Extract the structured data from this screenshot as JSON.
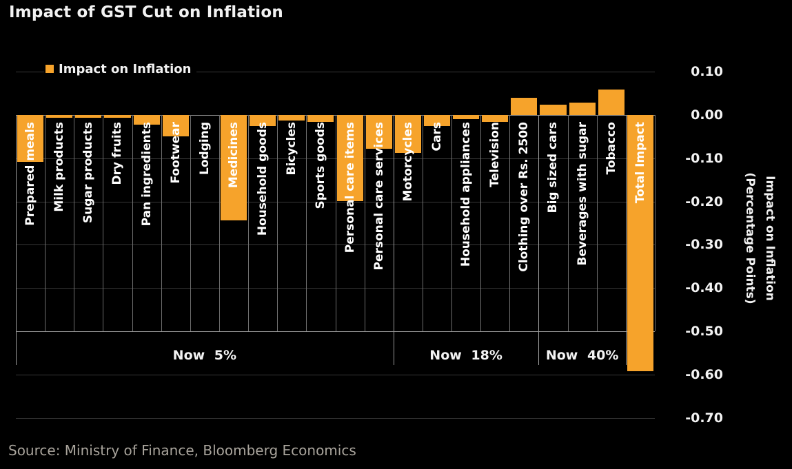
{
  "title": "Impact of GST Cut on Inflation",
  "legend": {
    "label": "Impact on Inflation"
  },
  "source": "Source: Ministry of Finance, Bloomberg Economics",
  "y_axis": {
    "title_line1": "Impact on Inflation",
    "title_line2": "(Percentage Points)",
    "ticks": [
      0.1,
      0.0,
      -0.1,
      -0.2,
      -0.3,
      -0.4,
      -0.5,
      -0.6,
      -0.7
    ]
  },
  "colors": {
    "background": "#000000",
    "bar": "#F6A32B",
    "text": "#F2F2F2",
    "gridline": "#373737",
    "zero_line": "#8a8a8a",
    "column_separator": "#6f6f6f",
    "band_edge": "#9a9a9a",
    "source_text": "#A9A49C"
  },
  "chart_data": {
    "type": "bar",
    "title": "Impact of GST Cut on Inflation",
    "series_name": "Impact on Inflation",
    "categories": [
      "Prepared meals",
      "Milk products",
      "Sugar products",
      "Dry fruits",
      "Pan ingredients",
      "Footwear",
      "Lodging",
      "Medicines",
      "Household goods",
      "Bicycles",
      "Sports goods",
      "Personal care items",
      "Personal care services",
      "Motorcycles",
      "Cars",
      "Household appliances",
      "Television",
      "Clothing over Rs. 2500",
      "Big sized cars",
      "Beverages with sugar",
      "Tobacco",
      "Total Impact"
    ],
    "values": [
      -0.108,
      -0.006,
      -0.006,
      -0.006,
      -0.022,
      -0.05,
      0.0,
      -0.244,
      -0.026,
      -0.012,
      -0.016,
      -0.199,
      -0.078,
      -0.087,
      -0.025,
      -0.01,
      -0.016,
      0.04,
      0.024,
      0.029,
      0.059,
      -0.592
    ],
    "groups": [
      {
        "label": "Now 5%",
        "start": 0,
        "end": 12
      },
      {
        "label": "Now 18%",
        "start": 13,
        "end": 17
      },
      {
        "label": "Now 40%",
        "start": 18,
        "end": 20
      }
    ],
    "ylabel": "Impact on Inflation (Percentage Points)",
    "ylim": [
      -0.7,
      0.1
    ],
    "ytick_step": 0.1,
    "grid": true,
    "legend_position": "top-left"
  }
}
